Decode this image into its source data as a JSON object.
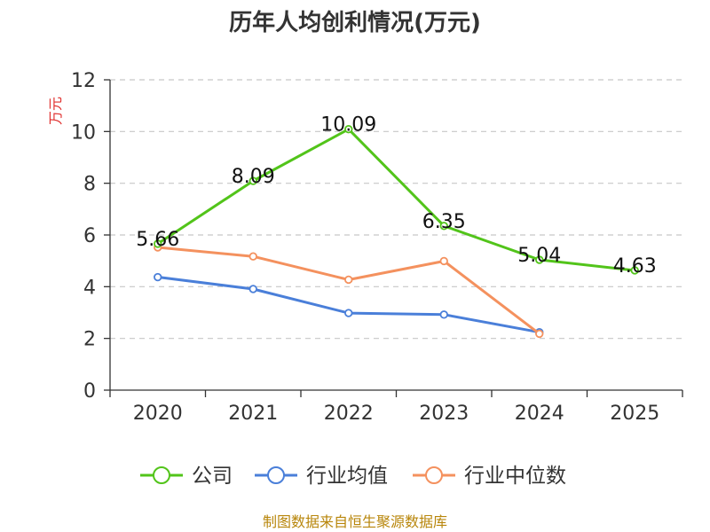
{
  "chart_data": {
    "type": "line",
    "title": "历年人均创利情况(万元)",
    "ylabel": "万元",
    "xlabel": "",
    "categories": [
      "2020",
      "2021",
      "2022",
      "2023",
      "2024",
      "2025"
    ],
    "ylim": [
      0,
      12
    ],
    "yticks": [
      0,
      2,
      4,
      6,
      8,
      10,
      12
    ],
    "grid": true,
    "legend_position": "bottom",
    "series": [
      {
        "name": "公司",
        "color": "#52c41a",
        "values": [
          5.66,
          8.09,
          10.09,
          6.35,
          5.04,
          4.63
        ],
        "labels": [
          "5.66",
          "8.09",
          "10.09",
          "6.35",
          "5.04",
          "4.63"
        ]
      },
      {
        "name": "行业均值",
        "color": "#4a7fd9",
        "values": [
          4.37,
          3.91,
          2.98,
          2.92,
          2.24,
          null
        ]
      },
      {
        "name": "行业中位数",
        "color": "#f4915e",
        "values": [
          5.52,
          5.17,
          4.27,
          4.99,
          2.18,
          null
        ]
      }
    ]
  },
  "source": "制图数据来自恒生聚源数据库"
}
